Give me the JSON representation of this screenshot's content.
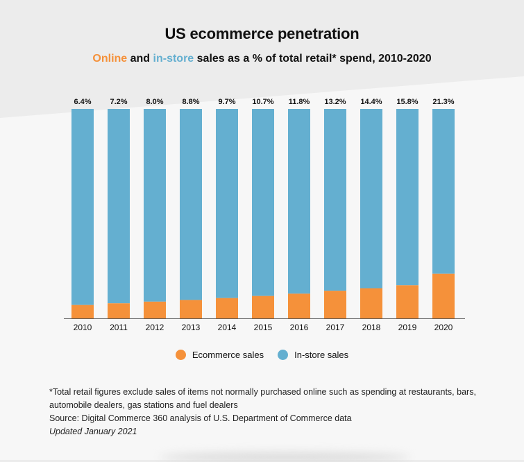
{
  "title": "US ecommerce penetration",
  "subtitle": {
    "online": "Online",
    "and": " and ",
    "instore": "in-store",
    "rest": " sales as a % of total retail* spend, 2010-2020"
  },
  "colors": {
    "ecommerce": "#f5913a",
    "instore": "#64afd0",
    "axis": "#555555"
  },
  "chart_data": {
    "type": "bar",
    "stacked": true,
    "title": "US ecommerce penetration",
    "subtitle": "Online and in-store sales as a % of total retail* spend, 2010-2020",
    "categories": [
      "2010",
      "2011",
      "2012",
      "2013",
      "2014",
      "2015",
      "2016",
      "2017",
      "2018",
      "2019",
      "2020"
    ],
    "series": [
      {
        "name": "Ecommerce sales",
        "color": "#f5913a",
        "values": [
          6.4,
          7.2,
          8.0,
          8.8,
          9.7,
          10.7,
          11.8,
          13.2,
          14.4,
          15.8,
          21.3
        ]
      },
      {
        "name": "In-store sales",
        "color": "#64afd0",
        "values": [
          93.6,
          92.8,
          92.0,
          91.2,
          90.3,
          89.3,
          88.2,
          86.8,
          85.6,
          84.2,
          78.7
        ]
      }
    ],
    "data_labels": [
      "6.4%",
      "7.2%",
      "8.0%",
      "8.8%",
      "9.7%",
      "10.7%",
      "11.8%",
      "13.2%",
      "14.4%",
      "15.8%",
      "21.3%"
    ],
    "grid": false,
    "legend_position": "bottom-center"
  },
  "legend": [
    {
      "label": "Ecommerce sales",
      "color": "#f5913a"
    },
    {
      "label": "In-store sales",
      "color": "#64afd0"
    }
  ],
  "footnote": {
    "line1": "*Total retail figures exclude sales of items not normally purchased online such as spending at restaurants, bars,",
    "line2": "automobile dealers, gas stations and fuel dealers",
    "source": "Source: Digital Commerce 360 analysis of U.S. Department of Commerce data",
    "updated": "Updated January 2021"
  }
}
